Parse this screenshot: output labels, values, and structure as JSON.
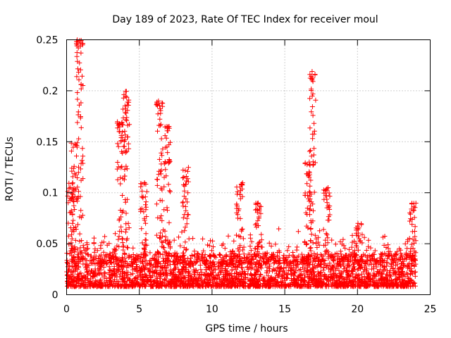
{
  "chart_data": {
    "type": "scatter",
    "title": "Day 189 of 2023, Rate Of TEC Index for receiver moul",
    "xlabel": "GPS time / hours",
    "ylabel": "ROTI / TECUs",
    "xlim": [
      0,
      25
    ],
    "ylim": [
      0,
      0.25
    ],
    "x_ticks": [
      0,
      5,
      10,
      15,
      20,
      25
    ],
    "x_tick_labels": [
      "0",
      "5",
      "10",
      "15",
      "20",
      "25"
    ],
    "y_ticks": [
      0,
      0.05,
      0.1,
      0.15,
      0.2,
      0.25
    ],
    "y_tick_labels": [
      "0",
      "0.05",
      "0.1",
      "0.15",
      "0.2",
      "0.25"
    ],
    "grid": true,
    "marker": "+",
    "color": "#ff0000",
    "x_range_hours": [
      0,
      24
    ],
    "baseline_band": [
      0.008,
      0.04
    ],
    "spike_events": [
      {
        "x": 0.3,
        "peak": 0.11
      },
      {
        "x": 0.55,
        "peak": 0.15
      },
      {
        "x": 0.9,
        "peak": 0.25
      },
      {
        "x": 3.7,
        "peak": 0.17
      },
      {
        "x": 4.1,
        "peak": 0.2
      },
      {
        "x": 5.3,
        "peak": 0.11
      },
      {
        "x": 6.4,
        "peak": 0.19
      },
      {
        "x": 6.9,
        "peak": 0.165
      },
      {
        "x": 8.2,
        "peak": 0.125
      },
      {
        "x": 11.9,
        "peak": 0.11
      },
      {
        "x": 13.2,
        "peak": 0.09
      },
      {
        "x": 16.6,
        "peak": 0.13
      },
      {
        "x": 16.9,
        "peak": 0.22
      },
      {
        "x": 17.9,
        "peak": 0.105
      },
      {
        "x": 20.1,
        "peak": 0.07
      },
      {
        "x": 23.8,
        "peak": 0.09
      }
    ]
  }
}
